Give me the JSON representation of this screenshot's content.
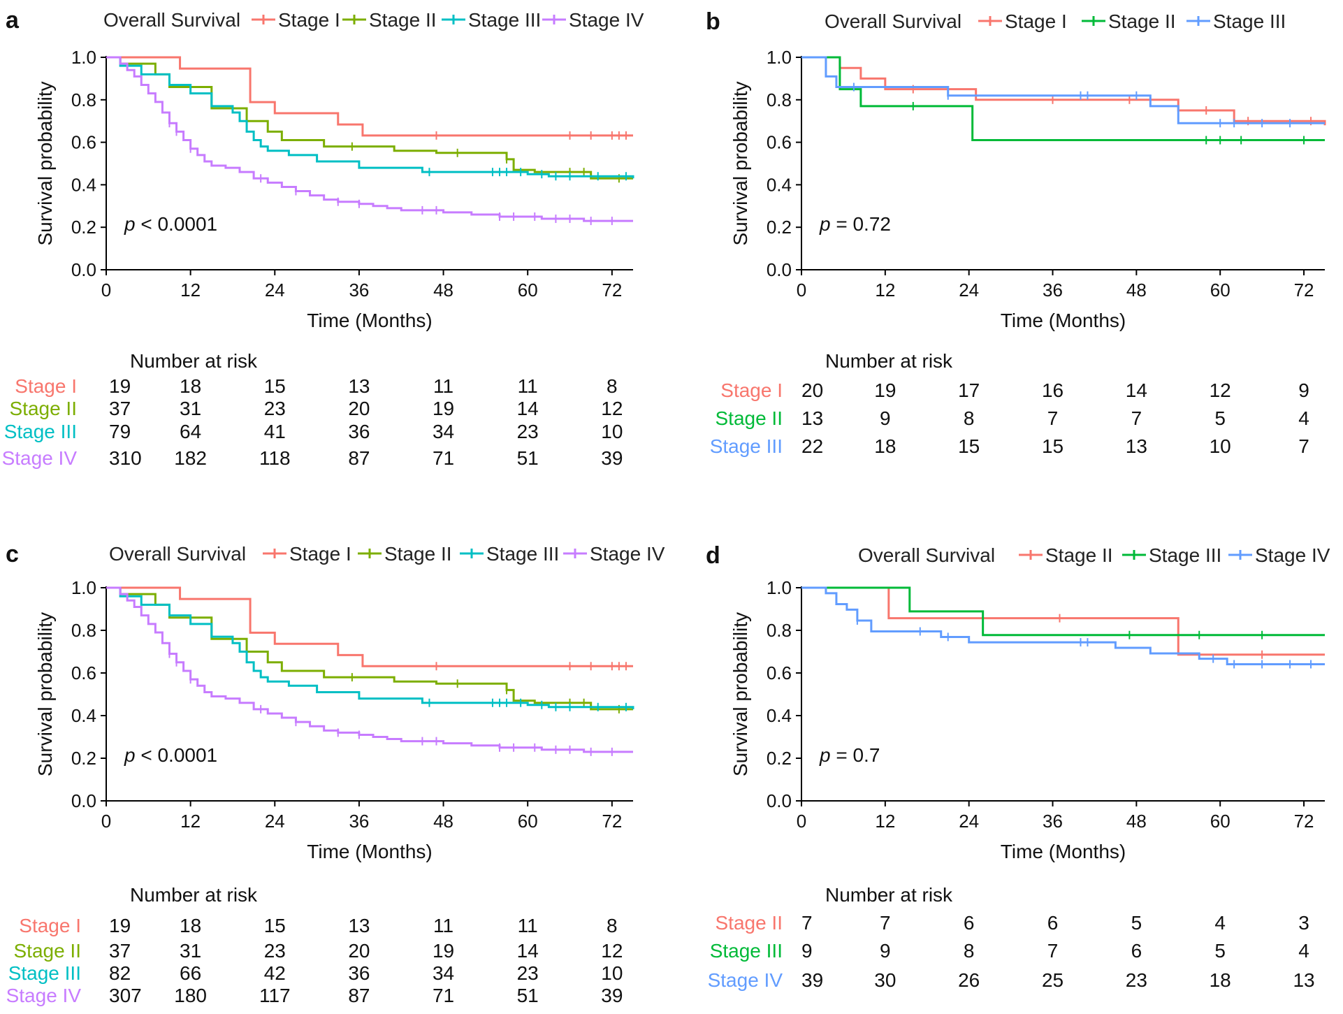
{
  "figure": {
    "panels": [
      {
        "letter": "a",
        "legend_title": "Overall Survival",
        "pvalue": {
          "prefix": "p",
          "text": " < 0.0001"
        },
        "risk_title": "Number at risk",
        "ylabel": "Survival probability",
        "xlabel": "Time (Months)",
        "series": [
          {
            "name": "Stage I",
            "color": "#F8766D"
          },
          {
            "name": "Stage II",
            "color": "#7CAE00"
          },
          {
            "name": "Stage III",
            "color": "#00BFC4"
          },
          {
            "name": "Stage IV",
            "color": "#C77CFF"
          }
        ],
        "risk": [
          [
            "19",
            "18",
            "15",
            "13",
            "11",
            "11",
            "8"
          ],
          [
            "37",
            "31",
            "23",
            "20",
            "19",
            "14",
            "12"
          ],
          [
            "79",
            "64",
            "41",
            "36",
            "34",
            "23",
            "10"
          ],
          [
            "310",
            "182",
            "118",
            "87",
            "71",
            "51",
            "39"
          ]
        ]
      },
      {
        "letter": "b",
        "legend_title": "Overall Survival",
        "pvalue": {
          "prefix": "p",
          "text": " = 0.72"
        },
        "risk_title": "Number at risk",
        "ylabel": "Survival probability",
        "xlabel": "Time (Months)",
        "series": [
          {
            "name": "Stage I",
            "color": "#F8766D"
          },
          {
            "name": "Stage II",
            "color": "#00BA38"
          },
          {
            "name": "Stage III",
            "color": "#619CFF"
          }
        ],
        "risk": [
          [
            "20",
            "19",
            "17",
            "16",
            "14",
            "12",
            "9"
          ],
          [
            "13",
            "9",
            "8",
            "7",
            "7",
            "5",
            "4"
          ],
          [
            "22",
            "18",
            "15",
            "15",
            "13",
            "10",
            "7"
          ]
        ]
      },
      {
        "letter": "c",
        "legend_title": "Overall Survival",
        "pvalue": {
          "prefix": "p",
          "text": " < 0.0001"
        },
        "risk_title": "Number at risk",
        "ylabel": "Survival probability",
        "xlabel": "Time (Months)",
        "series": [
          {
            "name": "Stage I",
            "color": "#F8766D"
          },
          {
            "name": "Stage II",
            "color": "#7CAE00"
          },
          {
            "name": "Stage III",
            "color": "#00BFC4"
          },
          {
            "name": "Stage IV",
            "color": "#C77CFF"
          }
        ],
        "risk": [
          [
            "19",
            "18",
            "15",
            "13",
            "11",
            "11",
            "8"
          ],
          [
            "37",
            "31",
            "23",
            "20",
            "19",
            "14",
            "12"
          ],
          [
            "82",
            "66",
            "42",
            "36",
            "34",
            "23",
            "10"
          ],
          [
            "307",
            "180",
            "117",
            "87",
            "71",
            "51",
            "39"
          ]
        ]
      },
      {
        "letter": "d",
        "legend_title": "Overall Survival",
        "pvalue": {
          "prefix": "p",
          "text": " = 0.7"
        },
        "risk_title": "Number at risk",
        "ylabel": "Survival probability",
        "xlabel": "Time (Months)",
        "series": [
          {
            "name": "Stage II",
            "color": "#F8766D"
          },
          {
            "name": "Stage III",
            "color": "#00BA38"
          },
          {
            "name": "Stage IV",
            "color": "#619CFF"
          }
        ],
        "risk": [
          [
            "7",
            "7",
            "6",
            "6",
            "5",
            "4",
            "3"
          ],
          [
            "9",
            "9",
            "8",
            "7",
            "6",
            "5",
            "4"
          ],
          [
            "39",
            "30",
            "26",
            "25",
            "23",
            "18",
            "13"
          ]
        ]
      }
    ]
  },
  "chart_data": [
    {
      "type": "line",
      "panel": "a",
      "title": "",
      "xlabel": "Time (Months)",
      "ylabel": "Survival probability",
      "xlim": [
        0,
        75
      ],
      "ylim": [
        0,
        1
      ],
      "xticks": [
        "0",
        "12",
        "24",
        "36",
        "48",
        "60",
        "72"
      ],
      "yticks": [
        "0.0",
        "0.2",
        "0.4",
        "0.6",
        "0.8",
        "1.0"
      ],
      "grid": false,
      "legend": "top",
      "series": [
        {
          "name": "Stage I",
          "x": [
            0,
            10.5,
            20.5,
            24,
            33,
            36.5,
            75
          ],
          "y": [
            1,
            0.947,
            0.789,
            0.737,
            0.684,
            0.632,
            0.632
          ],
          "censor_x": [
            47,
            66,
            69,
            72,
            73,
            74
          ]
        },
        {
          "name": "Stage II",
          "x": [
            0,
            2,
            7,
            9,
            15,
            20,
            23,
            25,
            31,
            35,
            41,
            47,
            57,
            58,
            61,
            69,
            75
          ],
          "y": [
            1,
            0.97,
            0.92,
            0.86,
            0.76,
            0.7,
            0.65,
            0.61,
            0.58,
            0.58,
            0.56,
            0.55,
            0.52,
            0.47,
            0.46,
            0.43,
            0.43
          ],
          "censor_x": [
            35,
            50,
            57,
            66,
            68,
            73
          ]
        },
        {
          "name": "Stage III",
          "x": [
            0,
            2,
            5,
            9,
            12,
            15,
            18,
            19,
            20,
            21,
            22,
            23,
            26,
            30,
            36,
            45,
            60,
            63,
            75
          ],
          "y": [
            1,
            0.96,
            0.92,
            0.87,
            0.83,
            0.77,
            0.74,
            0.7,
            0.65,
            0.61,
            0.58,
            0.56,
            0.54,
            0.51,
            0.48,
            0.46,
            0.45,
            0.44,
            0.43
          ],
          "censor_x": [
            46,
            55,
            56,
            57,
            59,
            62,
            64,
            66,
            70,
            74
          ]
        },
        {
          "name": "Stage IV",
          "x": [
            0,
            2,
            3,
            4,
            5,
            6,
            7,
            8,
            9,
            10,
            11,
            12,
            13,
            14,
            15,
            17,
            19,
            21,
            23,
            25,
            27,
            29,
            31,
            33,
            36,
            38,
            40,
            42,
            44,
            46,
            48,
            50,
            52,
            54,
            56,
            58,
            60,
            62,
            64,
            66,
            68,
            70,
            72,
            75
          ],
          "y": [
            1,
            0.97,
            0.94,
            0.91,
            0.87,
            0.83,
            0.79,
            0.74,
            0.69,
            0.65,
            0.61,
            0.57,
            0.54,
            0.51,
            0.49,
            0.48,
            0.46,
            0.43,
            0.41,
            0.39,
            0.37,
            0.35,
            0.33,
            0.32,
            0.31,
            0.3,
            0.29,
            0.28,
            0.28,
            0.28,
            0.27,
            0.27,
            0.26,
            0.26,
            0.25,
            0.25,
            0.25,
            0.24,
            0.24,
            0.24,
            0.23,
            0.23,
            0.23,
            0.23
          ],
          "censor_x": [
            9,
            10,
            12,
            22,
            27,
            33,
            36,
            45,
            47,
            56,
            58,
            61,
            64,
            66,
            69,
            72
          ]
        }
      ]
    },
    {
      "type": "line",
      "panel": "b",
      "title": "",
      "xlabel": "Time (Months)",
      "ylabel": "Survival probability",
      "xlim": [
        0,
        75
      ],
      "ylim": [
        0,
        1
      ],
      "xticks": [
        "0",
        "12",
        "24",
        "36",
        "48",
        "60",
        "72"
      ],
      "yticks": [
        "0.0",
        "0.2",
        "0.4",
        "0.6",
        "0.8",
        "1.0"
      ],
      "grid": false,
      "legend": "top",
      "series": [
        {
          "name": "Stage I",
          "x": [
            0,
            5.5,
            8.5,
            12,
            16,
            23,
            25,
            49,
            54,
            62,
            75
          ],
          "y": [
            1,
            0.95,
            0.9,
            0.85,
            0.85,
            0.85,
            0.8,
            0.8,
            0.75,
            0.7,
            0.68
          ],
          "censor_x": [
            16,
            36,
            47,
            58,
            64,
            73
          ]
        },
        {
          "name": "Stage II",
          "x": [
            0,
            5.5,
            8.5,
            24.5,
            75
          ],
          "y": [
            1,
            0.85,
            0.77,
            0.61,
            0.61
          ],
          "censor_x": [
            16,
            58,
            60,
            63,
            72
          ]
        },
        {
          "name": "Stage III",
          "x": [
            0,
            3.5,
            5,
            7,
            21,
            50,
            54,
            75
          ],
          "y": [
            1,
            0.91,
            0.86,
            0.86,
            0.82,
            0.77,
            0.69,
            0.69
          ],
          "censor_x": [
            7.5,
            21,
            40,
            41,
            48,
            60,
            62,
            66,
            70
          ]
        }
      ]
    },
    {
      "type": "line",
      "panel": "c",
      "title": "",
      "xlabel": "Time (Months)",
      "ylabel": "Survival probability",
      "xlim": [
        0,
        75
      ],
      "ylim": [
        0,
        1
      ],
      "xticks": [
        "0",
        "12",
        "24",
        "36",
        "48",
        "60",
        "72"
      ],
      "yticks": [
        "0.0",
        "0.2",
        "0.4",
        "0.6",
        "0.8",
        "1.0"
      ],
      "grid": false,
      "legend": "top",
      "series": [
        {
          "name": "Stage I",
          "x": [
            0,
            10.5,
            20.5,
            24,
            33,
            36.5,
            75
          ],
          "y": [
            1,
            0.947,
            0.789,
            0.737,
            0.684,
            0.632,
            0.632
          ],
          "censor_x": [
            47,
            66,
            69,
            72,
            73,
            74
          ]
        },
        {
          "name": "Stage II",
          "x": [
            0,
            2,
            7,
            9,
            15,
            20,
            23,
            25,
            31,
            35,
            41,
            47,
            57,
            58,
            61,
            69,
            75
          ],
          "y": [
            1,
            0.97,
            0.92,
            0.86,
            0.76,
            0.7,
            0.65,
            0.61,
            0.58,
            0.58,
            0.56,
            0.55,
            0.52,
            0.47,
            0.46,
            0.43,
            0.43
          ],
          "censor_x": [
            35,
            50,
            57,
            66,
            68,
            73
          ]
        },
        {
          "name": "Stage III",
          "x": [
            0,
            2,
            5,
            9,
            12,
            15,
            18,
            19,
            20,
            21,
            22,
            23,
            26,
            30,
            36,
            45,
            60,
            63,
            75
          ],
          "y": [
            1,
            0.96,
            0.92,
            0.87,
            0.83,
            0.77,
            0.74,
            0.7,
            0.65,
            0.61,
            0.58,
            0.56,
            0.54,
            0.51,
            0.48,
            0.46,
            0.45,
            0.44,
            0.43
          ],
          "censor_x": [
            46,
            55,
            56,
            57,
            59,
            62,
            64,
            66,
            70,
            74
          ]
        },
        {
          "name": "Stage IV",
          "x": [
            0,
            2,
            3,
            4,
            5,
            6,
            7,
            8,
            9,
            10,
            11,
            12,
            13,
            14,
            15,
            17,
            19,
            21,
            23,
            25,
            27,
            29,
            31,
            33,
            36,
            38,
            40,
            42,
            44,
            46,
            48,
            50,
            52,
            54,
            56,
            58,
            60,
            62,
            64,
            66,
            68,
            70,
            72,
            75
          ],
          "y": [
            1,
            0.97,
            0.94,
            0.91,
            0.87,
            0.83,
            0.79,
            0.74,
            0.69,
            0.65,
            0.61,
            0.57,
            0.54,
            0.51,
            0.49,
            0.48,
            0.46,
            0.43,
            0.41,
            0.39,
            0.37,
            0.35,
            0.33,
            0.32,
            0.31,
            0.3,
            0.29,
            0.28,
            0.28,
            0.28,
            0.27,
            0.27,
            0.26,
            0.26,
            0.25,
            0.25,
            0.25,
            0.24,
            0.24,
            0.24,
            0.23,
            0.23,
            0.23,
            0.23
          ],
          "censor_x": [
            9,
            10,
            12,
            22,
            27,
            33,
            36,
            45,
            47,
            56,
            58,
            61,
            64,
            66,
            69,
            72
          ]
        }
      ]
    },
    {
      "type": "line",
      "panel": "d",
      "title": "",
      "xlabel": "Time (Months)",
      "ylabel": "Survival probability",
      "xlim": [
        0,
        75
      ],
      "ylim": [
        0,
        1
      ],
      "xticks": [
        "0",
        "12",
        "24",
        "36",
        "48",
        "60",
        "72"
      ],
      "yticks": [
        "0.0",
        "0.2",
        "0.4",
        "0.6",
        "0.8",
        "1.0"
      ],
      "grid": false,
      "legend": "top",
      "series": [
        {
          "name": "Stage II",
          "x": [
            0,
            12.5,
            54,
            75
          ],
          "y": [
            1,
            0.857,
            0.686,
            0.686
          ],
          "censor_x": [
            37,
            66
          ]
        },
        {
          "name": "Stage III",
          "x": [
            0,
            15.5,
            26,
            75
          ],
          "y": [
            1,
            0.889,
            0.778,
            0.778
          ],
          "censor_x": [
            47,
            57,
            66
          ]
        },
        {
          "name": "Stage IV",
          "x": [
            0,
            3.5,
            5,
            6.5,
            8,
            10,
            20,
            24,
            45,
            50,
            57,
            61,
            75
          ],
          "y": [
            1,
            0.974,
            0.923,
            0.897,
            0.846,
            0.795,
            0.769,
            0.744,
            0.718,
            0.692,
            0.667,
            0.641,
            0.641
          ],
          "censor_x": [
            8,
            17,
            21,
            40,
            41,
            59,
            62,
            66,
            70,
            73
          ]
        }
      ]
    }
  ]
}
